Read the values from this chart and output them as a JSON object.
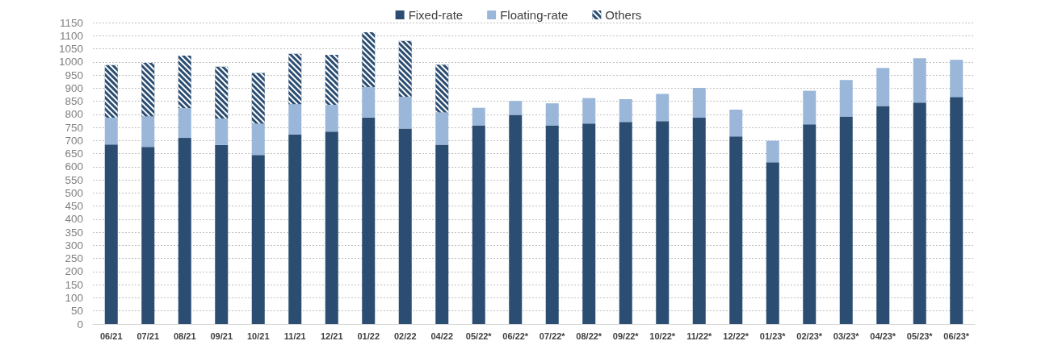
{
  "chart_data": {
    "type": "bar",
    "stacked": true,
    "legend": "top",
    "grid": "y",
    "categories": [
      "06/21",
      "07/21",
      "08/21",
      "09/21",
      "10/21",
      "11/21",
      "12/21",
      "01/22",
      "02/22",
      "04/22",
      "05/22*",
      "06/22*",
      "07/22*",
      "08/22*",
      "09/22*",
      "10/22*",
      "11/22*",
      "12/22*",
      "01/23*",
      "02/23*",
      "03/23*",
      "04/23*",
      "05/23*",
      "06/23*"
    ],
    "series": [
      {
        "name": "Fixed-rate",
        "color": "#2b4d72",
        "values": [
          685,
          676,
          710,
          683,
          645,
          723,
          734,
          788,
          746,
          684,
          758,
          798,
          758,
          765,
          771,
          774,
          787,
          716,
          617,
          762,
          792,
          832,
          845,
          866
        ]
      },
      {
        "name": "Floating-rate",
        "color": "#9ab7d9",
        "values": [
          102,
          116,
          113,
          101,
          119,
          116,
          102,
          116,
          120,
          123,
          67,
          53,
          84,
          97,
          87,
          104,
          114,
          102,
          82,
          128,
          139,
          145,
          169,
          142
        ]
      },
      {
        "name": "Others",
        "color": "#2b4d72",
        "values": [
          201,
          204,
          201,
          198,
          194,
          192,
          191,
          209,
          214,
          182,
          null,
          null,
          null,
          null,
          null,
          null,
          null,
          null,
          null,
          null,
          null,
          null,
          null,
          null
        ]
      }
    ],
    "ylim": [
      0,
      1150
    ],
    "yticks": [
      0,
      50,
      100,
      150,
      200,
      250,
      300,
      350,
      400,
      450,
      500,
      550,
      600,
      650,
      700,
      750,
      800,
      850,
      900,
      950,
      1000,
      1050,
      1100,
      1150
    ]
  }
}
